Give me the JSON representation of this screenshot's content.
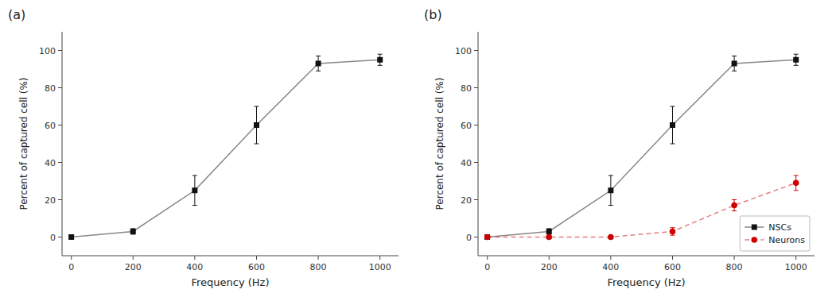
{
  "chart_data": [
    {
      "type": "line",
      "title": "(a)",
      "xlabel": "Frequency (Hz)",
      "ylabel": "Percent of captured cell (%)",
      "x": [
        0,
        200,
        400,
        600,
        800,
        1000
      ],
      "series": [
        {
          "color": "#111111",
          "marker": "square",
          "line_style": "solid",
          "values": [
            0,
            3,
            25,
            60,
            93,
            95
          ],
          "errors": [
            0.5,
            1.5,
            8,
            10,
            4,
            3
          ]
        }
      ],
      "xlim": [
        -30,
        1060
      ],
      "xticks": [
        0,
        200,
        400,
        600,
        800,
        1000
      ],
      "ylim": [
        -10,
        110
      ],
      "yticks": [
        0,
        20,
        40,
        60,
        80,
        100
      ],
      "grid": false
    },
    {
      "type": "line",
      "title": "(b)",
      "xlabel": "Frequency (Hz)",
      "ylabel": "Percent of captured cell (%)",
      "x": [
        0,
        200,
        400,
        600,
        800,
        1000
      ],
      "series": [
        {
          "name": "NSCs",
          "color": "#111111",
          "marker": "square",
          "line_style": "solid",
          "values": [
            0,
            3,
            25,
            60,
            93,
            95
          ],
          "errors": [
            0.5,
            1.5,
            8,
            10,
            4,
            3
          ]
        },
        {
          "name": "Neurons",
          "color": "#cc0000",
          "marker": "circle",
          "line_style": "dashed",
          "values": [
            0,
            0,
            0,
            3,
            17,
            29
          ],
          "errors": [
            0.5,
            0.5,
            0.5,
            2,
            3,
            4
          ]
        }
      ],
      "xlim": [
        -30,
        1060
      ],
      "xticks": [
        0,
        200,
        400,
        600,
        800,
        1000
      ],
      "ylim": [
        -10,
        110
      ],
      "yticks": [
        0,
        20,
        40,
        60,
        80,
        100
      ],
      "grid": false,
      "legend": "lower right"
    }
  ]
}
